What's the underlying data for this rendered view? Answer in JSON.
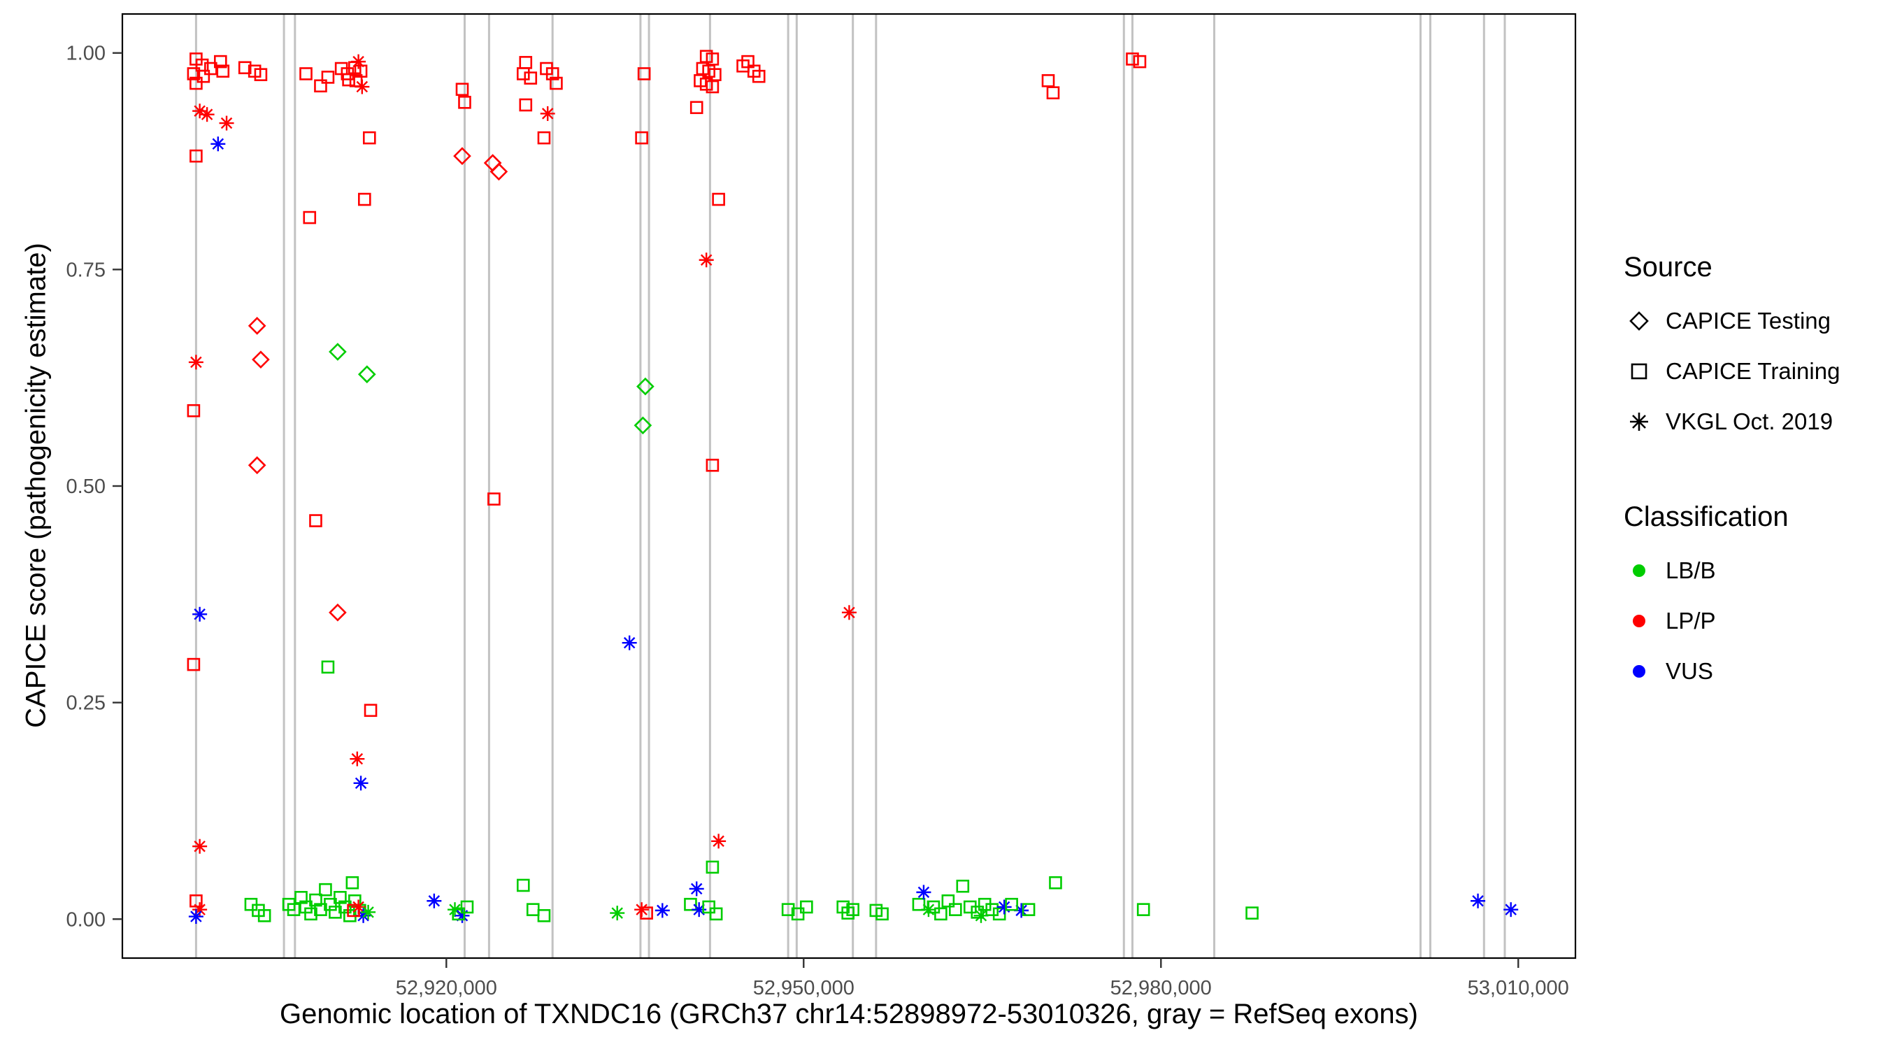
{
  "figure": {
    "y_axis_title": "CAPICE score (pathogenicity estimate)",
    "x_axis_title": "Genomic location of TXNDC16 (GRCh37 chr14:52898972-53010326, gray = RefSeq exons)"
  },
  "legend": {
    "source": {
      "title": "Source",
      "items": [
        {
          "label": "CAPICE Testing",
          "shape": "diamond"
        },
        {
          "label": "CAPICE Training",
          "shape": "square"
        },
        {
          "label": "VKGL Oct. 2019",
          "shape": "asterisk"
        }
      ]
    },
    "classification": {
      "title": "Classification",
      "items": [
        {
          "label": "LB/B",
          "color": "#00CD00"
        },
        {
          "label": "LP/P",
          "color": "#FF0000"
        },
        {
          "label": "VUS",
          "color": "#0000FF"
        }
      ]
    }
  },
  "chart_data": {
    "type": "scatter",
    "title": "",
    "xlabel": "Genomic location of TXNDC16 (GRCh37 chr14:52898972-53010326, gray = RefSeq exons)",
    "ylabel": "CAPICE score (pathogenicity estimate)",
    "x_domain": [
      52892800,
      53014800
    ],
    "y_domain": [
      -0.045,
      1.045
    ],
    "x_ticks": [
      {
        "value": 52920000,
        "label": "52,920,000"
      },
      {
        "value": 52950000,
        "label": "52,950,000"
      },
      {
        "value": 52980000,
        "label": "52,980,000"
      },
      {
        "value": 53010000,
        "label": "53,010,000"
      }
    ],
    "y_ticks": [
      {
        "value": 0.0,
        "label": "0.00"
      },
      {
        "value": 0.25,
        "label": "0.25"
      },
      {
        "value": 0.5,
        "label": "0.50"
      },
      {
        "value": 0.75,
        "label": "0.75"
      },
      {
        "value": 1.0,
        "label": "1.00"
      }
    ],
    "exon_note": "gray vertical lines = RefSeq exons",
    "exon_positions": [
      52898987,
      52906367,
      52907290,
      52921538,
      52923588,
      52928918,
      52936298,
      52937015,
      52942140,
      52948700,
      52949418,
      52954133,
      52956080,
      52976888,
      52977605,
      52984473,
      53001795,
      53002615,
      53007125,
      53008868
    ],
    "exon_color": "#C2C2C2",
    "panel_border_color": "#000000",
    "codes": {
      "source": {
        "T": "CAPICE Testing",
        "R": "CAPICE Training",
        "V": "VKGL Oct. 2019"
      },
      "classification": {
        "B": "LB/B",
        "P": "LP/P",
        "U": "VUS"
      }
    },
    "shape_by_source": {
      "T": "diamond",
      "R": "square",
      "V": "asterisk"
    },
    "color_by_classification": {
      "B": "#00CD00",
      "P": "#FF0000",
      "U": "#0000FF"
    },
    "point_format": [
      "genomic_position",
      "capice_score",
      "source_code",
      "classification_code"
    ],
    "points": [
      [
        52898987,
        0.993,
        "R",
        "P"
      ],
      [
        52899500,
        0.986,
        "R",
        "P"
      ],
      [
        52898782,
        0.976,
        "R",
        "P"
      ],
      [
        52899602,
        0.973,
        "R",
        "P"
      ],
      [
        52898987,
        0.965,
        "R",
        "P"
      ],
      [
        52900217,
        0.982,
        "R",
        "P"
      ],
      [
        52901037,
        0.99,
        "R",
        "P"
      ],
      [
        52901242,
        0.979,
        "R",
        "P"
      ],
      [
        52903087,
        0.983,
        "R",
        "P"
      ],
      [
        52903907,
        0.979,
        "R",
        "P"
      ],
      [
        52904420,
        0.975,
        "R",
        "P"
      ],
      [
        52899295,
        0.933,
        "V",
        "P"
      ],
      [
        52899910,
        0.929,
        "V",
        "P"
      ],
      [
        52898987,
        0.881,
        "R",
        "P"
      ],
      [
        52900832,
        0.895,
        "V",
        "U"
      ],
      [
        52901550,
        0.919,
        "V",
        "P"
      ],
      [
        52898987,
        0.643,
        "V",
        "P"
      ],
      [
        52898782,
        0.587,
        "R",
        "P"
      ],
      [
        52904112,
        0.685,
        "T",
        "P"
      ],
      [
        52904420,
        0.646,
        "T",
        "P"
      ],
      [
        52904112,
        0.524,
        "T",
        "P"
      ],
      [
        52899295,
        0.352,
        "V",
        "U"
      ],
      [
        52898782,
        0.294,
        "R",
        "P"
      ],
      [
        52899295,
        0.084,
        "V",
        "P"
      ],
      [
        52898987,
        0.021,
        "R",
        "P"
      ],
      [
        52899295,
        0.011,
        "V",
        "P"
      ],
      [
        52898987,
        0.003,
        "V",
        "U"
      ],
      [
        52903600,
        0.017,
        "R",
        "B"
      ],
      [
        52904215,
        0.01,
        "R",
        "B"
      ],
      [
        52904727,
        0.004,
        "R",
        "B"
      ],
      [
        52908212,
        0.976,
        "R",
        "P"
      ],
      [
        52909442,
        0.962,
        "R",
        "P"
      ],
      [
        52910057,
        0.972,
        "R",
        "P"
      ],
      [
        52908520,
        0.81,
        "R",
        "P"
      ],
      [
        52911185,
        0.982,
        "R",
        "P"
      ],
      [
        52911697,
        0.976,
        "R",
        "P"
      ],
      [
        52912312,
        0.983,
        "R",
        "P"
      ],
      [
        52911800,
        0.969,
        "R",
        "P"
      ],
      [
        52912825,
        0.979,
        "R",
        "P"
      ],
      [
        52912415,
        0.968,
        "R",
        "P"
      ],
      [
        52912620,
        0.99,
        "V",
        "P"
      ],
      [
        52912927,
        0.961,
        "V",
        "P"
      ],
      [
        52913542,
        0.902,
        "R",
        "P"
      ],
      [
        52913132,
        0.831,
        "R",
        "P"
      ],
      [
        52909032,
        0.46,
        "R",
        "P"
      ],
      [
        52910877,
        0.354,
        "T",
        "P"
      ],
      [
        52910057,
        0.291,
        "R",
        "B"
      ],
      [
        52913645,
        0.241,
        "R",
        "P"
      ],
      [
        52912517,
        0.185,
        "V",
        "P"
      ],
      [
        52912825,
        0.157,
        "V",
        "U"
      ],
      [
        52910877,
        0.655,
        "T",
        "B"
      ],
      [
        52913337,
        0.629,
        "T",
        "B"
      ],
      [
        52906777,
        0.017,
        "R",
        "B"
      ],
      [
        52907187,
        0.011,
        "R",
        "B"
      ],
      [
        52907802,
        0.025,
        "R",
        "B"
      ],
      [
        52908212,
        0.014,
        "R",
        "B"
      ],
      [
        52908622,
        0.006,
        "R",
        "B"
      ],
      [
        52909032,
        0.022,
        "R",
        "B"
      ],
      [
        52909442,
        0.011,
        "R",
        "B"
      ],
      [
        52909852,
        0.034,
        "R",
        "B"
      ],
      [
        52910262,
        0.017,
        "R",
        "B"
      ],
      [
        52910672,
        0.008,
        "R",
        "B"
      ],
      [
        52911082,
        0.025,
        "R",
        "B"
      ],
      [
        52911492,
        0.014,
        "R",
        "B"
      ],
      [
        52911902,
        0.004,
        "R",
        "B"
      ],
      [
        52912312,
        0.021,
        "R",
        "B"
      ],
      [
        52912722,
        0.01,
        "R",
        "B"
      ],
      [
        52912107,
        0.042,
        "R",
        "B"
      ],
      [
        52912620,
        0.014,
        "V",
        "P"
      ],
      [
        52913030,
        0.004,
        "V",
        "U"
      ],
      [
        52913440,
        0.008,
        "V",
        "B"
      ],
      [
        52912210,
        0.01,
        "R",
        "P"
      ],
      [
        52921333,
        0.958,
        "R",
        "P"
      ],
      [
        52921538,
        0.943,
        "R",
        "P"
      ],
      [
        52921333,
        0.881,
        "T",
        "P"
      ],
      [
        52923895,
        0.873,
        "T",
        "P"
      ],
      [
        52924408,
        0.863,
        "T",
        "P"
      ],
      [
        52923998,
        0.485,
        "R",
        "P"
      ],
      [
        52918975,
        0.021,
        "V",
        "U"
      ],
      [
        52920718,
        0.011,
        "V",
        "B"
      ],
      [
        52921333,
        0.004,
        "V",
        "U"
      ],
      [
        52921743,
        0.014,
        "R",
        "B"
      ],
      [
        52921025,
        0.006,
        "R",
        "B"
      ],
      [
        52926663,
        0.989,
        "R",
        "P"
      ],
      [
        52926458,
        0.976,
        "R",
        "P"
      ],
      [
        52927073,
        0.971,
        "R",
        "P"
      ],
      [
        52926663,
        0.94,
        "R",
        "P"
      ],
      [
        52928405,
        0.982,
        "R",
        "P"
      ],
      [
        52928918,
        0.976,
        "R",
        "P"
      ],
      [
        52929225,
        0.965,
        "R",
        "P"
      ],
      [
        52928508,
        0.93,
        "V",
        "P"
      ],
      [
        52928200,
        0.902,
        "R",
        "P"
      ],
      [
        52926458,
        0.039,
        "R",
        "B"
      ],
      [
        52927278,
        0.011,
        "R",
        "B"
      ],
      [
        52928200,
        0.004,
        "R",
        "B"
      ],
      [
        52936605,
        0.976,
        "R",
        "P"
      ],
      [
        52936400,
        0.902,
        "R",
        "P"
      ],
      [
        52936708,
        0.615,
        "T",
        "B"
      ],
      [
        52936503,
        0.57,
        "T",
        "B"
      ],
      [
        52935375,
        0.319,
        "V",
        "U"
      ],
      [
        52934350,
        0.007,
        "V",
        "B"
      ],
      [
        52936400,
        0.011,
        "V",
        "P"
      ],
      [
        52936810,
        0.007,
        "R",
        "P"
      ],
      [
        52938143,
        0.01,
        "V",
        "U"
      ],
      [
        52941833,
        0.996,
        "R",
        "P"
      ],
      [
        52942345,
        0.993,
        "R",
        "P"
      ],
      [
        52941525,
        0.982,
        "R",
        "P"
      ],
      [
        52942038,
        0.979,
        "R",
        "P"
      ],
      [
        52942550,
        0.975,
        "R",
        "P"
      ],
      [
        52941320,
        0.968,
        "R",
        "P"
      ],
      [
        52941833,
        0.964,
        "R",
        "P"
      ],
      [
        52942345,
        0.961,
        "R",
        "P"
      ],
      [
        52941013,
        0.937,
        "R",
        "P"
      ],
      [
        52942858,
        0.831,
        "R",
        "P"
      ],
      [
        52941833,
        0.761,
        "V",
        "P"
      ],
      [
        52942345,
        0.524,
        "R",
        "P"
      ],
      [
        52942858,
        0.09,
        "V",
        "P"
      ],
      [
        52942345,
        0.06,
        "R",
        "B"
      ],
      [
        52941013,
        0.035,
        "V",
        "U"
      ],
      [
        52940500,
        0.017,
        "R",
        "B"
      ],
      [
        52941218,
        0.011,
        "V",
        "U"
      ],
      [
        52942038,
        0.014,
        "R",
        "B"
      ],
      [
        52942653,
        0.006,
        "R",
        "B"
      ],
      [
        52944908,
        0.985,
        "R",
        "P"
      ],
      [
        52945318,
        0.99,
        "R",
        "P"
      ],
      [
        52945830,
        0.979,
        "R",
        "P"
      ],
      [
        52946240,
        0.973,
        "R",
        "P"
      ],
      [
        52948700,
        0.011,
        "R",
        "B"
      ],
      [
        52949520,
        0.006,
        "R",
        "B"
      ],
      [
        52950238,
        0.014,
        "R",
        "B"
      ],
      [
        52953313,
        0.014,
        "R",
        "B"
      ],
      [
        52953723,
        0.007,
        "R",
        "B"
      ],
      [
        52954133,
        0.011,
        "R",
        "B"
      ],
      [
        52953825,
        0.354,
        "V",
        "P"
      ],
      [
        52956080,
        0.01,
        "R",
        "B"
      ],
      [
        52956593,
        0.006,
        "R",
        "B"
      ],
      [
        52959668,
        0.017,
        "R",
        "B"
      ],
      [
        52960078,
        0.031,
        "V",
        "U"
      ],
      [
        52960488,
        0.011,
        "V",
        "B"
      ],
      [
        52960898,
        0.014,
        "R",
        "B"
      ],
      [
        52961513,
        0.006,
        "R",
        "B"
      ],
      [
        52962128,
        0.021,
        "R",
        "B"
      ],
      [
        52962743,
        0.011,
        "R",
        "B"
      ],
      [
        52963358,
        0.038,
        "R",
        "B"
      ],
      [
        52963973,
        0.014,
        "R",
        "B"
      ],
      [
        52964588,
        0.008,
        "R",
        "B"
      ],
      [
        52965203,
        0.017,
        "R",
        "B"
      ],
      [
        52965818,
        0.011,
        "R",
        "B"
      ],
      [
        52966433,
        0.006,
        "R",
        "B"
      ],
      [
        52964895,
        0.004,
        "V",
        "B"
      ],
      [
        52966843,
        0.014,
        "V",
        "U"
      ],
      [
        52968278,
        0.01,
        "V",
        "U"
      ],
      [
        52967458,
        0.017,
        "R",
        "B"
      ],
      [
        52968893,
        0.011,
        "R",
        "B"
      ],
      [
        52970533,
        0.968,
        "R",
        "P"
      ],
      [
        52970943,
        0.954,
        "R",
        "P"
      ],
      [
        52971148,
        0.042,
        "R",
        "B"
      ],
      [
        52977605,
        0.993,
        "R",
        "P"
      ],
      [
        52978220,
        0.99,
        "R",
        "P"
      ],
      [
        52978528,
        0.011,
        "R",
        "B"
      ],
      [
        52987650,
        0.007,
        "R",
        "B"
      ],
      [
        53006613,
        0.021,
        "V",
        "U"
      ],
      [
        53009380,
        0.011,
        "V",
        "U"
      ]
    ]
  }
}
